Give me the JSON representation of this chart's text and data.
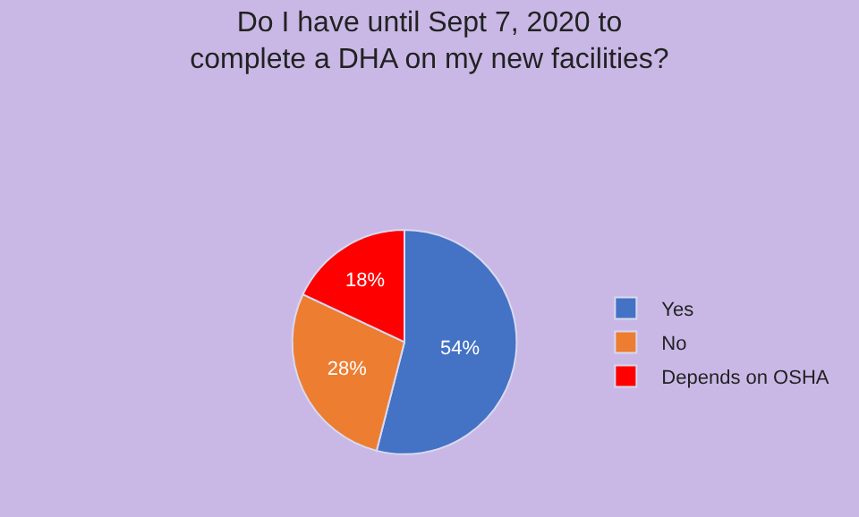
{
  "chart_data": {
    "type": "pie",
    "title": "Do I have until Sept 7, 2020 to complete a DHA on my new facilities?",
    "categories": [
      "Yes",
      "No",
      "Depends on OSHA"
    ],
    "values": [
      54,
      28,
      18
    ],
    "value_labels": [
      "54%",
      "28%",
      "18%"
    ],
    "colors": [
      "#4472c4",
      "#ed7d31",
      "#ff0000"
    ],
    "legend": "right"
  }
}
